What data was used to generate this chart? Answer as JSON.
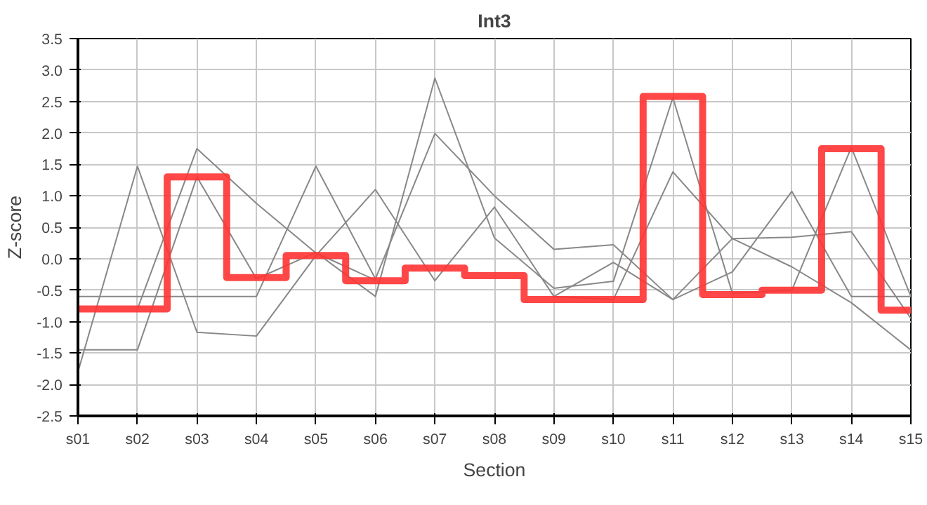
{
  "chart_data": {
    "type": "line",
    "title": "Int3",
    "xlabel": "Section",
    "ylabel": "Z-score",
    "categories": [
      "s01",
      "s02",
      "s03",
      "s04",
      "s05",
      "s06",
      "s07",
      "s08",
      "s09",
      "s10",
      "s11",
      "s12",
      "s13",
      "s14",
      "s15"
    ],
    "ylim": [
      -2.5,
      3.5
    ],
    "yticks": [
      {
        "value": -2.5,
        "label": "-2.5"
      },
      {
        "value": -2,
        "label": "-2.0"
      },
      {
        "value": -1.5,
        "label": "-1.5"
      },
      {
        "value": -1,
        "label": "-1.0"
      },
      {
        "value": -0.5,
        "label": "-0.5"
      },
      {
        "value": 0,
        "label": "0.0"
      },
      {
        "value": 0.5,
        "label": "0.5"
      },
      {
        "value": 1,
        "label": "1.0"
      },
      {
        "value": 1.5,
        "label": "1.5"
      },
      {
        "value": 2,
        "label": "2.0"
      },
      {
        "value": 2.5,
        "label": "2.5"
      },
      {
        "value": 3,
        "label": "3.0"
      },
      {
        "value": 3.5,
        "label": "3.5"
      }
    ],
    "grid": true,
    "series": [
      {
        "color": "#888888",
        "values": [
          -1.45,
          -1.45,
          1.3,
          -0.32,
          0.1,
          -0.6,
          2.87,
          0.33,
          -0.47,
          -0.36,
          2.56,
          -0.55,
          -0.5,
          1.77,
          -0.6
        ]
      },
      {
        "color": "#888888",
        "values": [
          -1.8,
          1.47,
          -1.17,
          -1.23,
          0.05,
          1.1,
          -0.35,
          0.82,
          -0.6,
          -0.06,
          -0.65,
          0.32,
          0.34,
          0.43,
          -0.95
        ]
      },
      {
        "color": "#888888",
        "values": [
          -0.6,
          -0.6,
          -0.6,
          -0.6,
          1.47,
          -0.32,
          1.99,
          1.0,
          0.15,
          0.22,
          -0.65,
          -0.21,
          1.07,
          -0.6,
          -0.6
        ]
      },
      {
        "color": "#888888",
        "values": [
          null,
          -0.8,
          1.75,
          0.88,
          0.09,
          -0.34,
          null,
          null,
          -0.6,
          -0.65,
          1.38,
          0.32,
          -0.13,
          -0.7,
          -1.45
        ]
      },
      {
        "type": "step",
        "color": "#ff3333",
        "values": [
          -0.8,
          -0.8,
          1.3,
          -0.3,
          0.05,
          -0.35,
          -0.15,
          -0.27,
          -0.65,
          -0.65,
          2.58,
          -0.57,
          -0.5,
          1.75,
          -0.82
        ]
      }
    ]
  }
}
